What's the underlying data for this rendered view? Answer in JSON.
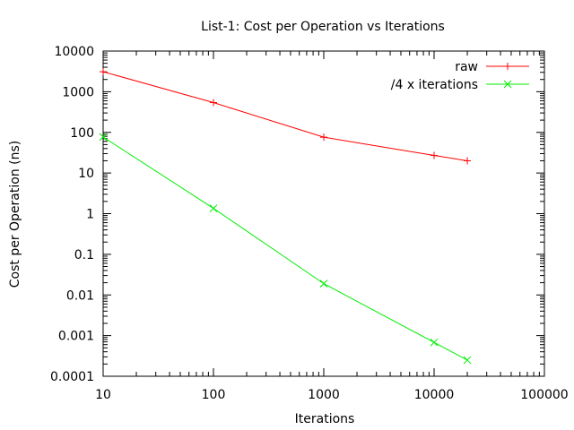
{
  "chart_data": {
    "type": "line",
    "title": "List-1: Cost per Operation vs Iterations",
    "xlabel": "Iterations",
    "ylabel": "Cost per Operation (ns)",
    "x_scale": "log",
    "y_scale": "log",
    "xlim": [
      10,
      100000
    ],
    "ylim": [
      0.0001,
      10000
    ],
    "x_ticks": [
      "10",
      "100",
      "1000",
      "10000",
      "100000"
    ],
    "y_ticks": [
      "0.0001",
      "0.001",
      "0.01",
      "0.1",
      "1",
      "10",
      "100",
      "1000",
      "10000"
    ],
    "grid": false,
    "legend_position": "top-right",
    "series": [
      {
        "name": "raw",
        "color": "#ff0000",
        "marker": "plus",
        "x": [
          10,
          100,
          1000,
          10000,
          20000
        ],
        "y": [
          3100,
          540,
          76,
          27,
          20
        ]
      },
      {
        "name": "/4 x iterations",
        "color": "#00ee00",
        "marker": "cross",
        "x": [
          10,
          100,
          1000,
          10000,
          20000
        ],
        "y": [
          77,
          1.35,
          0.019,
          0.00068,
          0.00025
        ]
      }
    ]
  }
}
